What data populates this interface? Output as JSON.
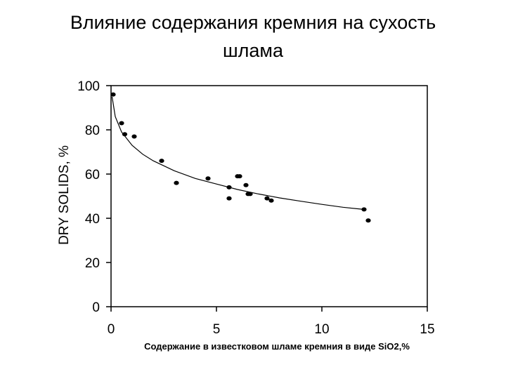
{
  "slide": {
    "title_line1": "Влияние содержания кремния на сухость",
    "title_line2": "шлама"
  },
  "chart_data": {
    "type": "scatter",
    "xlabel": "Содержание в известковом шламе кремния в  виде SiO2,%",
    "ylabel": "DRY SOLIDS, %",
    "xlim": [
      0,
      15
    ],
    "ylim": [
      0,
      100
    ],
    "x_ticks": [
      "0",
      "5",
      "10",
      "15"
    ],
    "y_ticks": [
      "0",
      "20",
      "40",
      "60",
      "80",
      "100"
    ],
    "grid": "right and top border only",
    "colors": {
      "marker": "#000000",
      "curve": "#000000",
      "axis": "#000000"
    },
    "series": [
      {
        "type": "scatter",
        "x": [
          0.1,
          0.5,
          0.65,
          1.1,
          2.4,
          3.1,
          4.6,
          5.6,
          5.6,
          6.0,
          6.1,
          6.4,
          6.5,
          6.6,
          7.4,
          7.6,
          12.0,
          12.2
        ],
        "y": [
          96,
          83,
          78,
          77,
          66,
          56,
          58,
          54,
          49,
          59,
          59,
          55,
          51,
          51,
          49,
          48,
          44,
          39
        ]
      },
      {
        "type": "line",
        "x": [
          0.05,
          0.2,
          0.5,
          1,
          1.5,
          2,
          3,
          4,
          5,
          6,
          7,
          8,
          9,
          10,
          11,
          12
        ],
        "y": [
          95,
          86,
          79,
          73,
          69,
          66,
          61.5,
          58,
          55.5,
          53,
          51,
          49.2,
          47.7,
          46.3,
          45,
          44
        ]
      }
    ]
  }
}
